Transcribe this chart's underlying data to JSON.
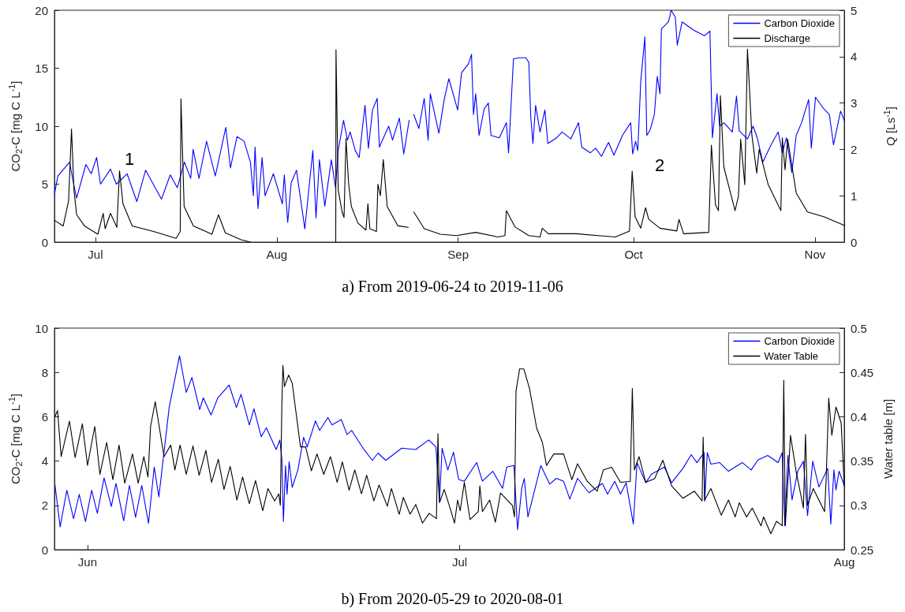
{
  "chart_data": [
    {
      "type": "line",
      "title": "a) From 2019-06-24 to 2019-11-06",
      "ylabel": "CO$_{2}$-C [mg C L$^{-1}$]",
      "y2label": "Q [Ls$^{-1}$]",
      "xlim": [
        "2019-06-24",
        "2019-11-06"
      ],
      "xticks": [
        {
          "value": "2019-07-01",
          "label": "Jul"
        },
        {
          "value": "2019-08-01",
          "label": "Aug"
        },
        {
          "value": "2019-09-01",
          "label": "Sep"
        },
        {
          "value": "2019-10-01",
          "label": "Oct"
        },
        {
          "value": "2019-11-01",
          "label": "Nov"
        }
      ],
      "ylim": [
        0,
        20
      ],
      "yticks": [
        0,
        5,
        10,
        15,
        20
      ],
      "y2lim": [
        0,
        5
      ],
      "y2ticks": [
        0,
        1,
        2,
        3,
        4,
        5
      ],
      "legend": "top right",
      "annotations": [
        "1",
        "2"
      ],
      "series": [
        {
          "name": "Carbon Dioxide",
          "color": "#0000ff",
          "x": [
            "2019-06-24T00:00",
            "2019-06-24T14:00",
            "2019-06-26T14:00",
            "2019-06-27T07:00",
            "2019-06-27T19:00",
            "2019-06-29T09:00",
            "2019-06-30T07:00",
            "2019-07-01T05:00",
            "2019-07-01T21:00",
            "2019-07-03T14:00",
            "2019-07-04T14:00",
            "2019-07-06T10:00",
            "2019-07-08T02:00",
            "2019-07-09T14:00",
            "2019-07-12T07:00",
            "2019-07-13T19:00",
            "2019-07-15T00:00",
            "2019-07-16T05:00",
            "2019-07-17T07:00",
            "2019-07-17T17:00",
            "2019-07-18T17:00",
            "2019-07-20T00:00",
            "2019-07-21T12:00",
            "2019-07-23T07:00",
            "2019-07-24T02:00",
            "2019-07-25T05:00",
            "2019-07-26T10:00",
            "2019-07-27T12:00",
            "2019-07-28T00:00",
            "2019-07-28T07:00",
            "2019-07-28T19:00",
            "2019-07-29T12:00",
            "2019-07-30T00:00",
            "2019-07-31T10:00",
            "2019-08-01T23:00",
            "2019-08-02T07:00",
            "2019-08-02T21:00",
            "2019-08-03T11:00",
            "2019-08-04T09:00",
            "2019-08-05T19:00",
            "2019-08-07T04:00",
            "2019-08-07T17:00",
            "2019-08-08T07:00",
            "2019-08-09T05:00",
            "2019-08-10T08:00",
            "2019-08-11T01:00",
            "2019-08-11T12:00",
            "2019-08-12T10:00",
            "2019-08-13T02:00",
            "2019-08-13T13:00",
            "2019-08-14T10:00",
            "2019-08-15T02:00",
            "2019-08-16T02:00",
            "2019-08-16T16:00",
            "2019-08-17T09:00",
            "2019-08-18T04:00",
            "2019-08-18T13:00",
            "2019-08-20T03:00",
            "2019-08-20T19:00",
            "2019-08-21T23:00",
            "2019-08-22T17:00",
            "2019-08-23T15:00",
            "2019-08-23T20:00",
            "2019-08-24T10:00",
            "2019-08-25T07:00",
            "2019-08-26T05:00",
            "2019-08-26T21:00",
            "2019-08-27T06:00",
            "2019-08-28T17:00",
            "2019-08-29T15:00",
            "2019-08-30T10:00",
            "2019-08-31T22:00",
            "2019-09-01T14:00",
            "2019-09-02T19:00",
            "2019-09-03T07:00",
            "2019-09-03T15:00",
            "2019-09-04T00:00",
            "2019-09-04T14:00",
            "2019-09-05T11:00",
            "2019-09-06T04:00",
            "2019-09-06T15:00",
            "2019-09-08T01:00",
            "2019-09-09T06:00",
            "2019-09-09T15:00",
            "2019-09-10T11:00",
            "2019-09-11T10:00",
            "2019-09-12T14:00",
            "2019-09-13T02:00",
            "2019-09-13T10:00",
            "2019-09-13T19:00",
            "2019-09-14T06:00",
            "2019-09-15T00:00",
            "2019-09-15T20:00",
            "2019-09-16T08:00",
            "2019-09-17T20:00",
            "2019-09-18T19:00",
            "2019-09-20T06:00",
            "2019-09-21T14:00",
            "2019-09-22T03:00",
            "2019-09-23T14:00",
            "2019-09-24T12:00",
            "2019-09-25T12:00",
            "2019-09-26T17:00",
            "2019-09-27T15:00",
            "2019-09-29T02:00",
            "2019-09-30T12:00",
            "2019-09-30T20:00",
            "2019-10-01T08:00",
            "2019-10-01T17:00",
            "2019-10-02T05:00",
            "2019-10-02T22:00",
            "2019-10-03T06:00",
            "2019-10-03T20:00",
            "2019-10-04T13:00",
            "2019-10-05T01:00",
            "2019-10-05T12:00",
            "2019-10-05T18:00",
            "2019-10-06T23:00",
            "2019-10-07T10:00",
            "2019-10-08T03:00",
            "2019-10-08T11:00",
            "2019-10-09T07:00",
            "2019-10-11T05:00",
            "2019-10-13T02:00",
            "2019-10-14T01:00",
            "2019-10-14T11:00",
            "2019-10-15T06:00",
            "2019-10-15T17:00",
            "2019-10-16T10:00",
            "2019-10-17T21:00",
            "2019-10-18T14:00",
            "2019-10-19T01:00",
            "2019-10-20T11:00",
            "2019-10-21T10:00",
            "2019-10-22T03:00",
            "2019-10-23T02:00",
            "2019-10-24T12:00",
            "2019-10-25T17:00",
            "2019-10-26T10:00",
            "2019-10-27T03:00",
            "2019-10-28T01:00",
            "2019-10-28T19:00",
            "2019-10-29T17:00",
            "2019-10-30T22:00",
            "2019-10-31T09:00",
            "2019-11-01T02:00",
            "2019-11-02T12:00",
            "2019-11-03T11:00",
            "2019-11-04T04:00",
            "2019-11-05T09:00",
            "2019-11-06T00:00"
          ],
          "values": [
            4.1,
            5.7,
            6.9,
            5.0,
            3.8,
            6.7,
            5.9,
            7.3,
            5.0,
            6.3,
            5.0,
            5.9,
            3.5,
            6.2,
            3.7,
            5.8,
            4.7,
            6.9,
            5.5,
            8.0,
            5.5,
            8.7,
            5.7,
            9.9,
            6.4,
            9.1,
            8.7,
            6.9,
            4.0,
            8.2,
            2.9,
            7.3,
            4.0,
            5.9,
            3.3,
            5.8,
            1.7,
            5.1,
            6.2,
            1.15,
            7.9,
            2.1,
            7.1,
            3.1,
            7.1,
            4.7,
            7.9,
            10.5,
            8.8,
            9.5,
            7.9,
            7.3,
            11.8,
            8.1,
            11.4,
            12.4,
            8.2,
            10.0,
            8.8,
            10.7,
            7.6,
            10.5,
            null,
            11.0,
            9.8,
            12.4,
            8.8,
            12.8,
            9.4,
            12.3,
            14.1,
            11.4,
            14.6,
            15.4,
            16.2,
            11.0,
            12.8,
            9.2,
            11.5,
            12.0,
            9.2,
            9.0,
            10.3,
            7.7,
            15.8,
            15.9,
            15.9,
            15.5,
            10.8,
            8.5,
            11.8,
            9.5,
            11.4,
            8.5,
            9.0,
            9.5,
            8.9,
            10.3,
            8.2,
            7.7,
            8.1,
            7.4,
            8.6,
            7.5,
            9.2,
            10.3,
            7.6,
            8.7,
            7.9,
            13.8,
            17.7,
            9.2,
            9.7,
            11.0,
            14.3,
            12.8,
            18.4,
            19.0,
            20.0,
            19.4,
            17.0,
            19.0,
            18.3,
            17.8,
            18.2,
            9.0,
            12.8,
            10.0,
            10.3,
            9.5,
            12.6,
            9.6,
            8.9,
            10.0,
            9.0,
            6.9,
            8.4,
            9.5,
            7.7,
            9.0,
            6.0,
            9.2,
            10.3,
            12.3,
            8.1,
            12.5,
            11.5,
            11.0,
            8.4,
            11.3,
            10.5
          ]
        },
        {
          "name": "Discharge",
          "color": "#000000",
          "axis": "y2",
          "x": [
            "2019-06-24T00:00",
            "2019-06-25T12:00",
            "2019-06-26T10:00",
            "2019-06-26T22:00",
            "2019-06-27T08:00",
            "2019-06-27T19:00",
            "2019-06-29T03:00",
            "2019-07-01T10:00",
            "2019-07-02T08:00",
            "2019-07-02T16:00",
            "2019-07-03T14:00",
            "2019-07-04T16:00",
            "2019-07-05T03:00",
            "2019-07-05T17:00",
            "2019-07-07T07:00",
            "2019-07-10T23:00",
            "2019-07-14T19:00",
            "2019-07-15T12:00",
            "2019-07-15T15:00",
            "2019-07-16T04:00",
            "2019-07-17T18:00",
            "2019-07-20T22:00",
            "2019-07-22T01:00",
            "2019-07-23T05:00",
            "2019-07-25T22:00",
            "2019-07-27T12:00",
            "2019-07-28T00:00",
            "2019-08-11T02:00",
            "2019-08-11T03:00",
            "2019-08-11T12:00",
            "2019-08-12T04:00",
            "2019-08-12T12:00",
            "2019-08-12T20:00",
            "2019-08-13T07:00",
            "2019-08-13T18:00",
            "2019-08-14T21:00",
            "2019-08-16T06:00",
            "2019-08-16T14:00",
            "2019-08-16T22:00",
            "2019-08-18T01:00",
            "2019-08-18T07:00",
            "2019-08-18T17:00",
            "2019-08-19T05:00",
            "2019-08-19T21:00",
            "2019-08-21T17:00",
            "2019-08-23T12:00",
            "2019-08-23T20:00",
            "2019-08-24T10:00",
            "2019-08-26T05:00",
            "2019-08-28T23:00",
            "2019-08-31T17:00",
            "2019-09-04T00:00",
            "2019-09-07T20:00",
            "2019-09-09T00:00",
            "2019-09-09T06:00",
            "2019-09-10T17:00",
            "2019-09-13T02:00",
            "2019-09-15T00:00",
            "2019-09-15T09:00",
            "2019-09-16T10:00",
            "2019-09-21T05:00",
            "2019-09-27T21:00",
            "2019-09-30T07:00",
            "2019-09-30T18:00",
            "2019-10-01T06:00",
            "2019-10-02T05:00",
            "2019-10-03T01:00",
            "2019-10-03T14:00",
            "2019-10-05T12:00",
            "2019-10-08T09:00",
            "2019-10-08T18:00",
            "2019-10-09T13:00",
            "2019-10-13T20:00",
            "2019-10-14T07:00",
            "2019-10-15T00:00",
            "2019-10-15T12:00",
            "2019-10-15T20:00",
            "2019-10-16T10:00",
            "2019-10-18T08:00",
            "2019-10-18T22:00",
            "2019-10-19T07:00",
            "2019-10-20T00:00",
            "2019-10-20T11:00",
            "2019-10-21T05:00",
            "2019-10-22T01:00",
            "2019-10-22T11:00",
            "2019-10-24T00:00",
            "2019-10-26T04:00",
            "2019-10-26T10:00",
            "2019-10-26T21:00",
            "2019-10-27T08:00",
            "2019-10-28T19:00",
            "2019-10-30T17:00",
            "2019-11-02T12:00",
            "2019-11-06T00:00"
          ],
          "values": [
            0.47,
            0.35,
            0.89,
            2.44,
            1.13,
            0.59,
            0.35,
            0.17,
            0.62,
            0.29,
            0.62,
            0.32,
            1.54,
            0.83,
            0.35,
            0.23,
            0.08,
            0.23,
            3.09,
            0.77,
            0.35,
            0.17,
            0.59,
            0.2,
            0.05,
            0.0,
            null,
            0.0,
            4.15,
            1.13,
            0.65,
            0.53,
            2.23,
            1.25,
            0.77,
            0.41,
            0.26,
            0.83,
            0.29,
            0.23,
            1.25,
            1.0,
            1.78,
            0.77,
            0.35,
            0.32,
            null,
            0.65,
            0.29,
            0.17,
            0.14,
            0.21,
            0.11,
            0.14,
            0.68,
            0.33,
            0.14,
            0.11,
            0.3,
            0.18,
            0.18,
            0.11,
            0.24,
            1.53,
            0.55,
            0.3,
            0.74,
            0.49,
            0.3,
            0.24,
            0.49,
            0.18,
            0.21,
            2.09,
            0.8,
            0.68,
            3.16,
            1.62,
            0.68,
            0.99,
            2.22,
            1.24,
            4.16,
            2.31,
            1.49,
            2.0,
            1.24,
            0.68,
            2.25,
            1.56,
            2.22,
            1.06,
            0.65,
            0.55,
            0.36
          ]
        }
      ]
    },
    {
      "type": "line",
      "title": "b) From 2020-05-29 to 2020-08-01",
      "ylabel": "CO$_{2}$-C [mg C L$^{-1}$]",
      "y2label": "Water table [m]",
      "xlim": [
        "2020-05-29T08:00",
        "2020-08-01"
      ],
      "xticks": [
        {
          "value": "2020-06-01",
          "label": "Jun"
        },
        {
          "value": "2020-07-01",
          "label": "Jul"
        },
        {
          "value": "2020-08-01",
          "label": "Aug"
        }
      ],
      "ylim": [
        0,
        10
      ],
      "yticks": [
        0,
        2,
        4,
        6,
        8,
        10
      ],
      "y2lim": [
        0.25,
        0.5
      ],
      "y2ticks": [
        0.25,
        0.3,
        0.35,
        0.4,
        0.45,
        0.5
      ],
      "legend": "top right",
      "series": [
        {
          "name": "Carbon Dioxide",
          "color": "#0000ff",
          "x": [
            "2020-05-29T09:00",
            "2020-05-29T19:00",
            "2020-05-30T08:00",
            "2020-05-30T21:00",
            "2020-05-31T08:00",
            "2020-05-31T20:00",
            "2020-06-01T08:00",
            "2020-06-01T19:00",
            "2020-06-02T08:00",
            "2020-06-02T22:00",
            "2020-06-03T07:00",
            "2020-06-03T22:00",
            "2020-06-04T09:00",
            "2020-06-04T21:00",
            "2020-06-05T09:00",
            "2020-06-05T22:00",
            "2020-06-06T09:00",
            "2020-06-06T18:00",
            "2020-06-07T14:00",
            "2020-06-08T10:00",
            "2020-06-08T23:00",
            "2020-06-09T10:00",
            "2020-06-10T01:00",
            "2020-06-10T08:00",
            "2020-06-10T23:00",
            "2020-06-11T12:00",
            "2020-06-12T10:00",
            "2020-06-13T00:00",
            "2020-06-13T09:00",
            "2020-06-14T01:00",
            "2020-06-14T10:00",
            "2020-06-15T00:00",
            "2020-06-15T10:00",
            "2020-06-16T05:00",
            "2020-06-16T12:00",
            "2020-06-16T16:00",
            "2020-06-16T19:00",
            "2020-06-16T23:00",
            "2020-06-17T02:00",
            "2020-06-17T06:00",
            "2020-06-17T12:00",
            "2020-06-17T23:00",
            "2020-06-18T10:00",
            "2020-06-18T17:00",
            "2020-06-19T09:00",
            "2020-06-19T17:00",
            "2020-06-20T09:00",
            "2020-06-20T17:00",
            "2020-06-21T11:00",
            "2020-06-21T22:00",
            "2020-06-22T07:00",
            "2020-06-23T05:00",
            "2020-06-23T23:00",
            "2020-06-24T10:00",
            "2020-06-25T01:00",
            "2020-06-26T08:00",
            "2020-06-27T11:00",
            "2020-06-28T12:00",
            "2020-06-29T02:00",
            "2020-06-29T09:00",
            "2020-06-29T14:00",
            "2020-06-30T01:00",
            "2020-06-30T12:00",
            "2020-06-30T22:00",
            "2020-07-01T09:00",
            "2020-07-02T09:00",
            "2020-07-02T20:00",
            "2020-07-03T16:00",
            "2020-07-04T11:00",
            "2020-07-04T19:00",
            "2020-07-05T09:00",
            "2020-07-05T16:00",
            "2020-07-06T00:00",
            "2020-07-06T05:00",
            "2020-07-06T12:00",
            "2020-07-07T13:00",
            "2020-07-08T06:00",
            "2020-07-08T19:00",
            "2020-07-09T09:00",
            "2020-07-09T21:00",
            "2020-07-10T12:00",
            "2020-07-11T10:00",
            "2020-07-12T12:00",
            "2020-07-12T22:00",
            "2020-07-13T12:00",
            "2020-07-13T23:00",
            "2020-07-14T10:00",
            "2020-07-15T00:00",
            "2020-07-15T07:00",
            "2020-07-16T00:00",
            "2020-07-16T11:00",
            "2020-07-17T12:00",
            "2020-07-18T02:00",
            "2020-07-19T00:00",
            "2020-07-19T16:00",
            "2020-07-20T03:00",
            "2020-07-20T17:00",
            "2020-07-20T18:00",
            "2020-07-20T23:00",
            "2020-07-21T06:00",
            "2020-07-21T23:00",
            "2020-07-22T16:00",
            "2020-07-23T19:00",
            "2020-07-24T12:00",
            "2020-07-25T01:00",
            "2020-07-25T20:00",
            "2020-07-26T16:00",
            "2020-07-27T00:00",
            "2020-07-27T05:00",
            "2020-07-27T11:00",
            "2020-07-27T19:00",
            "2020-07-28T06:00",
            "2020-07-28T17:00",
            "2020-07-29T01:00",
            "2020-07-29T11:00",
            "2020-07-29T23:00",
            "2020-07-30T16:00",
            "2020-07-30T22:00",
            "2020-07-31T04:00",
            "2020-07-31T08:00",
            "2020-07-31T14:00",
            "2020-08-01T00:00"
          ],
          "values": [
            2.93,
            1.03,
            2.68,
            1.4,
            2.5,
            1.27,
            2.68,
            1.64,
            3.24,
            1.95,
            2.99,
            1.3,
            2.9,
            1.46,
            2.9,
            1.19,
            3.73,
            2.38,
            6.42,
            8.75,
            7.1,
            7.77,
            6.32,
            6.85,
            6.08,
            6.85,
            7.43,
            6.42,
            7.01,
            5.63,
            6.36,
            5.1,
            5.5,
            4.52,
            4.95,
            4.1,
            1.27,
            3.79,
            2.5,
            3.97,
            2.81,
            3.6,
            5.07,
            4.64,
            5.81,
            5.38,
            5.96,
            5.63,
            5.87,
            5.2,
            5.38,
            4.58,
            4.03,
            4.36,
            4.03,
            4.58,
            4.52,
            4.95,
            4.64,
            2.19,
            4.58,
            3.6,
            4.4,
            3.17,
            3.09,
            3.93,
            3.09,
            3.54,
            2.77,
            3.73,
            3.8,
            0.9,
            2.77,
            3.22,
            1.48,
            3.8,
            2.96,
            3.22,
            3.09,
            2.28,
            3.22,
            2.57,
            2.99,
            2.51,
            3.09,
            2.51,
            3.02,
            1.16,
            3.93,
            3.02,
            3.41,
            3.73,
            3.02,
            3.67,
            4.29,
            3.93,
            4.38,
            2.19,
            4.38,
            3.86,
            3.93,
            3.54,
            3.93,
            3.6,
            4.05,
            4.25,
            3.93,
            4.38,
            1.09,
            4.25,
            2.25,
            3.54,
            3.99,
            1.54,
            3.99,
            2.83,
            3.67,
            1.16,
            3.6,
            2.7,
            3.54,
            2.9
          ]
        },
        {
          "name": "Water Table",
          "color": "#000000",
          "axis": "y2",
          "x": [
            "2020-05-29T09:00",
            "2020-05-29T14:00",
            "2020-05-29T21:00",
            "2020-05-30T13:00",
            "2020-05-31T00:00",
            "2020-05-31T14:00",
            "2020-06-01T00:00",
            "2020-06-01T14:00",
            "2020-06-02T00:00",
            "2020-06-02T13:00",
            "2020-06-03T01:00",
            "2020-06-03T13:00",
            "2020-06-04T00:00",
            "2020-06-04T15:00",
            "2020-06-05T02:00",
            "2020-06-05T13:00",
            "2020-06-05T21:00",
            "2020-06-06T02:00",
            "2020-06-06T11:00",
            "2020-06-07T04:00",
            "2020-06-07T17:00",
            "2020-06-08T01:00",
            "2020-06-08T11:00",
            "2020-06-08T23:00",
            "2020-06-09T12:00",
            "2020-06-10T00:00",
            "2020-06-10T13:00",
            "2020-06-11T00:00",
            "2020-06-11T13:00",
            "2020-06-12T00:00",
            "2020-06-12T12:00",
            "2020-06-13T01:00",
            "2020-06-13T12:00",
            "2020-06-14T01:00",
            "2020-06-14T13:00",
            "2020-06-15T03:00",
            "2020-06-15T13:00",
            "2020-06-16T02:00",
            "2020-06-16T10:00",
            "2020-06-16T13:00",
            "2020-06-16T16:00",
            "2020-06-16T18:00",
            "2020-06-16T21:00",
            "2020-06-17T05:00",
            "2020-06-17T12:00",
            "2020-06-18T04:00",
            "2020-06-18T14:00",
            "2020-06-19T01:00",
            "2020-06-19T12:00",
            "2020-06-20T01:00",
            "2020-06-20T14:00",
            "2020-06-21T03:00",
            "2020-06-21T13:00",
            "2020-06-22T02:00",
            "2020-06-22T13:00",
            "2020-06-23T02:00",
            "2020-06-23T12:00",
            "2020-06-24T02:00",
            "2020-06-24T12:00",
            "2020-06-25T04:00",
            "2020-06-25T12:00",
            "2020-06-26T03:00",
            "2020-06-26T11:00",
            "2020-06-27T00:00",
            "2020-06-27T11:00",
            "2020-06-28T00:00",
            "2020-06-28T13:00",
            "2020-06-29T03:00",
            "2020-06-29T06:00",
            "2020-06-29T09:00",
            "2020-06-29T18:00",
            "2020-06-30T07:00",
            "2020-06-30T14:00",
            "2020-06-30T20:00",
            "2020-07-01T01:00",
            "2020-07-01T09:00",
            "2020-07-01T20:00",
            "2020-07-02T12:00",
            "2020-07-02T15:00",
            "2020-07-02T20:00",
            "2020-07-03T10:00",
            "2020-07-03T21:00",
            "2020-07-04T07:00",
            "2020-07-05T06:00",
            "2020-07-05T10:00",
            "2020-07-05T13:00",
            "2020-07-05T20:00",
            "2020-07-06T04:00",
            "2020-07-06T15:00",
            "2020-07-07T05:00",
            "2020-07-07T16:00",
            "2020-07-08T00:00",
            "2020-07-08T14:00",
            "2020-07-09T09:00",
            "2020-07-10T01:00",
            "2020-07-10T12:00",
            "2020-07-11T07:00",
            "2020-07-12T02:00",
            "2020-07-12T14:00",
            "2020-07-13T06:00",
            "2020-07-13T23:00",
            "2020-07-14T18:00",
            "2020-07-14T22:00",
            "2020-07-15T02:00",
            "2020-07-15T11:00",
            "2020-07-16T00:00",
            "2020-07-16T17:00",
            "2020-07-17T09:00",
            "2020-07-18T02:00",
            "2020-07-19T00:00",
            "2020-07-19T22:00",
            "2020-07-20T13:00",
            "2020-07-20T15:00",
            "2020-07-20T18:00",
            "2020-07-21T06:00",
            "2020-07-22T02:00",
            "2020-07-22T16:00",
            "2020-07-23T05:00",
            "2020-07-23T13:00",
            "2020-07-24T03:00",
            "2020-07-24T14:00",
            "2020-07-25T07:00",
            "2020-07-25T12:00",
            "2020-07-26T02:00",
            "2020-07-26T13:00",
            "2020-07-27T00:00",
            "2020-07-27T03:00",
            "2020-07-27T06:00",
            "2020-07-27T16:00",
            "2020-07-28T03:00",
            "2020-07-28T17:00",
            "2020-07-28T21:00",
            "2020-07-29T01:00",
            "2020-07-29T12:00",
            "2020-07-30T10:00",
            "2020-07-30T13:00",
            "2020-07-30T18:00",
            "2020-07-31T00:00",
            "2020-07-31T08:00",
            "2020-07-31T18:00",
            "2020-08-01T00:00"
          ],
          "values": [
            0.4,
            0.407,
            0.355,
            0.395,
            0.354,
            0.392,
            0.345,
            0.389,
            0.335,
            0.371,
            0.329,
            0.368,
            0.325,
            0.358,
            0.325,
            0.355,
            0.332,
            0.389,
            0.417,
            0.355,
            0.368,
            0.34,
            0.368,
            0.335,
            0.367,
            0.334,
            0.362,
            0.326,
            0.352,
            0.318,
            0.344,
            0.306,
            0.332,
            0.302,
            0.328,
            0.294,
            0.319,
            0.305,
            0.313,
            0.3,
            0.414,
            0.458,
            0.434,
            0.447,
            0.438,
            0.366,
            0.366,
            0.339,
            0.358,
            0.335,
            0.355,
            0.326,
            0.349,
            0.317,
            0.34,
            0.313,
            0.334,
            0.305,
            0.323,
            0.299,
            0.319,
            0.29,
            0.309,
            0.29,
            0.301,
            0.28,
            0.291,
            0.285,
            0.381,
            0.303,
            0.318,
            0.294,
            0.28,
            0.306,
            0.294,
            0.326,
            0.284,
            0.293,
            0.322,
            0.293,
            0.306,
            0.281,
            0.314,
            0.3,
            0.287,
            0.429,
            0.454,
            0.454,
            0.432,
            0.387,
            0.371,
            0.345,
            0.358,
            0.358,
            0.329,
            0.347,
            0.327,
            0.316,
            0.34,
            0.343,
            0.326,
            0.327,
            0.432,
            0.34,
            0.355,
            0.326,
            0.33,
            0.351,
            0.322,
            0.308,
            0.316,
            0.305,
            0.377,
            0.306,
            0.319,
            0.289,
            0.306,
            0.287,
            0.303,
            0.287,
            0.297,
            0.277,
            0.287,
            0.268,
            0.282,
            0.277,
            0.441,
            0.277,
            0.379,
            0.338,
            0.297,
            0.38,
            0.3,
            0.319,
            0.293,
            0.33,
            0.421,
            0.379,
            0.411,
            0.393,
            0.322
          ]
        }
      ]
    }
  ]
}
